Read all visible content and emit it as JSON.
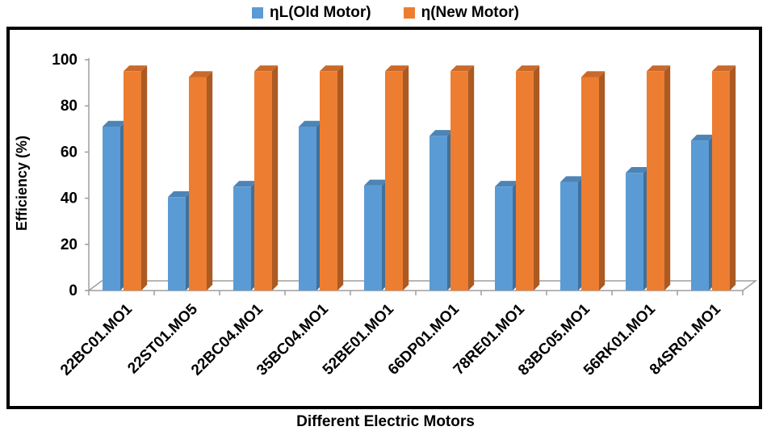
{
  "chart_data": {
    "type": "bar",
    "title": "",
    "xlabel": "Different Electric Motors",
    "ylabel": "Efficiency (%)",
    "ylim": [
      0,
      100
    ],
    "yticks": [
      0,
      20,
      40,
      60,
      80,
      100
    ],
    "categories": [
      "22BC01.MO1",
      "22ST01.MO5",
      "22BC04.MO1",
      "35BC04.MO1",
      "52BE01.MO1",
      "66DP01.MO1",
      "78RE01.MO1",
      "83BC05.MO1",
      "56RK01.MO1",
      "84SR01.MO1"
    ],
    "series": [
      {
        "name": "ηL(Old Motor)",
        "color": "#5B9BD5",
        "values": [
          71,
          40.5,
          45,
          71,
          45.5,
          67,
          45,
          47,
          51,
          65
        ]
      },
      {
        "name": "η(New Motor)",
        "color": "#ED7D31",
        "values": [
          95,
          92.5,
          95,
          95,
          95,
          95,
          95,
          92.5,
          95,
          95
        ]
      }
    ],
    "grid": false,
    "legend": "top-center",
    "style": "3d-clustered-column"
  }
}
